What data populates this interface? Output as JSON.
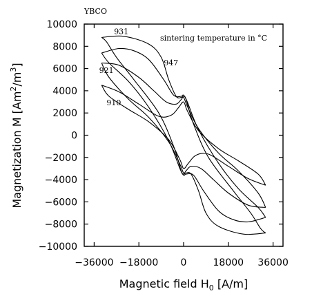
{
  "chart_data": {
    "type": "line",
    "corner_label": "YBCO",
    "legend_note": "sintering temperature in °C",
    "xlabel": "Magnetic field H",
    "xlabel_sub": "0",
    "xlabel_unit": " [A/m]",
    "ylabel": "Magnetization  M  [Am",
    "ylabel_sup": "2",
    "ylabel_mid": "/m",
    "ylabel_sup2": "3",
    "ylabel_end": "]",
    "xlim": [
      -40000,
      40000
    ],
    "ylim": [
      -10000,
      10000
    ],
    "x_ticks": [
      {
        "value": -36000,
        "label": "−36000"
      },
      {
        "value": -18000,
        "label": "−18000"
      },
      {
        "value": 0,
        "label": "0"
      },
      {
        "value": 18000,
        "label": "18000"
      },
      {
        "value": 36000,
        "label": "36000"
      }
    ],
    "y_ticks": [
      {
        "value": 10000,
        "label": "10000"
      },
      {
        "value": 8000,
        "label": "8000"
      },
      {
        "value": 6000,
        "label": "6000"
      },
      {
        "value": 4000,
        "label": "4000"
      },
      {
        "value": 2000,
        "label": "2000"
      },
      {
        "value": 0,
        "label": "0"
      },
      {
        "value": -2000,
        "label": "−2000"
      },
      {
        "value": -4000,
        "label": "−4000"
      },
      {
        "value": -6000,
        "label": "−6000"
      },
      {
        "value": -8000,
        "label": "−8000"
      },
      {
        "value": -10000,
        "label": "−10000"
      }
    ],
    "series": [
      {
        "name": "931",
        "label_at": [
          -28000,
          9100
        ],
        "upper": [
          [
            -33000,
            8800
          ],
          [
            -24000,
            8900
          ],
          [
            -14000,
            8200
          ],
          [
            -9000,
            7000
          ],
          [
            -6000,
            5000
          ],
          [
            -3000,
            3500
          ],
          [
            -1000,
            3400
          ],
          [
            0,
            3500
          ],
          [
            1000,
            3200
          ],
          [
            4000,
            1000
          ],
          [
            10000,
            -2000
          ],
          [
            20000,
            -5000
          ],
          [
            27000,
            -7000
          ],
          [
            31000,
            -8400
          ],
          [
            33000,
            -8800
          ]
        ],
        "lower": [
          [
            33000,
            -8800
          ],
          [
            24000,
            -8900
          ],
          [
            14000,
            -8200
          ],
          [
            9000,
            -7000
          ],
          [
            6000,
            -5000
          ],
          [
            3000,
            -3500
          ],
          [
            1000,
            -3400
          ],
          [
            0,
            -3500
          ],
          [
            -1000,
            -3200
          ],
          [
            -4000,
            -1000
          ],
          [
            -10000,
            2000
          ],
          [
            -20000,
            5000
          ],
          [
            -27000,
            7000
          ],
          [
            -31000,
            8400
          ],
          [
            -33000,
            8800
          ]
        ]
      },
      {
        "name": "947",
        "label_at": [
          -8000,
          6300
        ],
        "upper": [
          [
            -33000,
            7400
          ],
          [
            -26000,
            7800
          ],
          [
            -20000,
            7600
          ],
          [
            -14000,
            6800
          ],
          [
            -8000,
            5000
          ],
          [
            -4000,
            3600
          ],
          [
            -1000,
            3500
          ],
          [
            0,
            3600
          ],
          [
            1500,
            3000
          ],
          [
            6000,
            500
          ],
          [
            14000,
            -2500
          ],
          [
            22000,
            -4800
          ],
          [
            30000,
            -6500
          ],
          [
            33000,
            -7400
          ]
        ],
        "lower": [
          [
            33000,
            -7400
          ],
          [
            26000,
            -7800
          ],
          [
            20000,
            -7600
          ],
          [
            14000,
            -6800
          ],
          [
            8000,
            -5000
          ],
          [
            4000,
            -3600
          ],
          [
            1000,
            -3500
          ],
          [
            0,
            -3600
          ],
          [
            -1500,
            -3000
          ],
          [
            -6000,
            -500
          ],
          [
            -14000,
            2500
          ],
          [
            -22000,
            4800
          ],
          [
            -30000,
            6500
          ],
          [
            -33000,
            7400
          ]
        ]
      },
      {
        "name": "921",
        "label_at": [
          -34000,
          5600
        ],
        "upper": [
          [
            -33000,
            6500
          ],
          [
            -26000,
            6300
          ],
          [
            -18000,
            5200
          ],
          [
            -12000,
            4000
          ],
          [
            -7000,
            3000
          ],
          [
            -3000,
            2800
          ],
          [
            -1000,
            3200
          ],
          [
            0,
            3400
          ],
          [
            1500,
            2600
          ],
          [
            6000,
            600
          ],
          [
            14000,
            -1600
          ],
          [
            22000,
            -3200
          ],
          [
            30000,
            -5200
          ],
          [
            33000,
            -6500
          ]
        ],
        "lower": [
          [
            33000,
            -6500
          ],
          [
            26000,
            -6300
          ],
          [
            18000,
            -5200
          ],
          [
            12000,
            -4000
          ],
          [
            7000,
            -3000
          ],
          [
            3000,
            -2800
          ],
          [
            1000,
            -3200
          ],
          [
            0,
            -3400
          ],
          [
            -1500,
            -2600
          ],
          [
            -6000,
            -600
          ],
          [
            -14000,
            1600
          ],
          [
            -22000,
            3200
          ],
          [
            -30000,
            5200
          ],
          [
            -33000,
            6500
          ]
        ]
      },
      {
        "name": "910",
        "label_at": [
          -31000,
          2700
        ],
        "upper": [
          [
            -33000,
            4500
          ],
          [
            -26000,
            3900
          ],
          [
            -18000,
            2800
          ],
          [
            -10000,
            1700
          ],
          [
            -5000,
            1800
          ],
          [
            -2000,
            2500
          ],
          [
            0,
            3000
          ],
          [
            1500,
            2200
          ],
          [
            6000,
            400
          ],
          [
            14000,
            -1200
          ],
          [
            22000,
            -2300
          ],
          [
            30000,
            -3500
          ],
          [
            33000,
            -4500
          ]
        ],
        "lower": [
          [
            33000,
            -4500
          ],
          [
            26000,
            -3900
          ],
          [
            18000,
            -2800
          ],
          [
            10000,
            -1700
          ],
          [
            5000,
            -1800
          ],
          [
            2000,
            -2500
          ],
          [
            0,
            -3000
          ],
          [
            -1500,
            -2200
          ],
          [
            -6000,
            -400
          ],
          [
            -14000,
            1200
          ],
          [
            -22000,
            2300
          ],
          [
            -30000,
            3500
          ],
          [
            -33000,
            4500
          ]
        ]
      }
    ],
    "grid": false,
    "legend": "none"
  }
}
